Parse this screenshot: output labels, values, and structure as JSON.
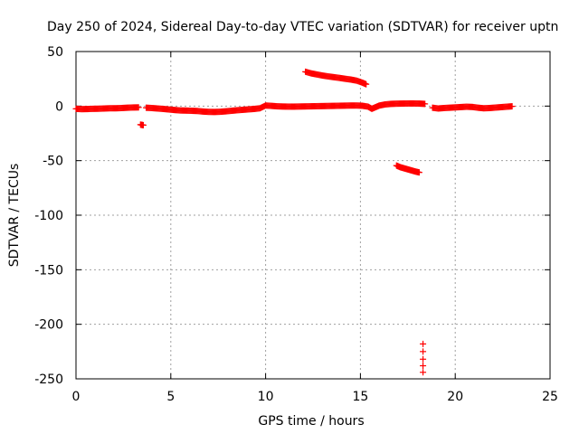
{
  "chart_data": {
    "type": "scatter",
    "title": "Day 250 of 2024, Sidereal Day-to-day VTEC variation (SDTVAR) for receiver uptn",
    "xlabel": "GPS time / hours",
    "ylabel": "SDTVAR / TECUs",
    "xlim": [
      0,
      25
    ],
    "ylim": [
      -250,
      50
    ],
    "x_ticks": [
      "0",
      "5",
      "10",
      "15",
      "20",
      "25"
    ],
    "y_ticks": [
      "50",
      "0",
      "-50",
      "-100",
      "-150",
      "-200",
      "-250"
    ],
    "x_tick_values": [
      0,
      5,
      10,
      15,
      20,
      25
    ],
    "y_tick_values": [
      50,
      0,
      -50,
      -100,
      -150,
      -200,
      -250
    ],
    "grid": true,
    "marker": "plus",
    "color": "#ff0000",
    "series": [
      {
        "values": [
          [
            0.0,
            -2.5
          ],
          [
            0.3,
            -2.8
          ],
          [
            0.6,
            -2.7
          ],
          [
            0.9,
            -2.5
          ],
          [
            1.2,
            -2.4
          ],
          [
            1.5,
            -2.2
          ],
          [
            1.8,
            -2.0
          ],
          [
            2.1,
            -2.0
          ],
          [
            2.4,
            -1.8
          ],
          [
            2.7,
            -1.5
          ],
          [
            3.0,
            -1.3
          ],
          [
            3.3,
            -1.2
          ],
          [
            3.4,
            -17.0
          ],
          [
            3.55,
            -17.5
          ],
          [
            3.7,
            -1.5
          ],
          [
            4.0,
            -1.8
          ],
          [
            4.3,
            -2.2
          ],
          [
            4.6,
            -2.6
          ],
          [
            4.9,
            -3.1
          ],
          [
            5.2,
            -3.6
          ],
          [
            5.5,
            -4.0
          ],
          [
            5.8,
            -4.1
          ],
          [
            6.1,
            -4.3
          ],
          [
            6.4,
            -4.5
          ],
          [
            6.7,
            -5.0
          ],
          [
            7.0,
            -5.3
          ],
          [
            7.3,
            -5.4
          ],
          [
            7.6,
            -5.2
          ],
          [
            7.9,
            -4.8
          ],
          [
            8.2,
            -4.3
          ],
          [
            8.5,
            -3.8
          ],
          [
            8.8,
            -3.4
          ],
          [
            9.1,
            -3.0
          ],
          [
            9.4,
            -2.6
          ],
          [
            9.7,
            -2.0
          ],
          [
            10.0,
            0.5
          ],
          [
            10.3,
            0.2
          ],
          [
            10.6,
            -0.2
          ],
          [
            10.9,
            -0.4
          ],
          [
            11.2,
            -0.5
          ],
          [
            11.5,
            -0.5
          ],
          [
            11.8,
            -0.4
          ],
          [
            12.1,
            -0.3
          ],
          [
            12.4,
            -0.2
          ],
          [
            12.7,
            -0.1
          ],
          [
            13.0,
            0.0
          ],
          [
            13.3,
            0.1
          ],
          [
            13.6,
            0.2
          ],
          [
            13.9,
            0.3
          ],
          [
            14.2,
            0.4
          ],
          [
            14.5,
            0.5
          ],
          [
            14.8,
            0.5
          ],
          [
            15.1,
            0.3
          ],
          [
            15.4,
            -0.5
          ],
          [
            15.6,
            -2.5
          ],
          [
            15.8,
            -1.0
          ],
          [
            16.0,
            0.5
          ],
          [
            16.3,
            1.5
          ],
          [
            16.6,
            2.0
          ],
          [
            16.9,
            2.2
          ],
          [
            17.2,
            2.3
          ],
          [
            17.5,
            2.4
          ],
          [
            17.8,
            2.4
          ],
          [
            18.1,
            2.3
          ],
          [
            18.4,
            2.0
          ],
          [
            12.1,
            31.5
          ],
          [
            12.4,
            30.0
          ],
          [
            12.7,
            29.0
          ],
          [
            13.0,
            28.0
          ],
          [
            13.3,
            27.2
          ],
          [
            13.6,
            26.5
          ],
          [
            13.9,
            25.8
          ],
          [
            14.2,
            25.0
          ],
          [
            14.5,
            24.3
          ],
          [
            14.8,
            23.3
          ],
          [
            15.1,
            21.5
          ],
          [
            15.3,
            20.0
          ],
          [
            16.9,
            -54.5
          ],
          [
            17.1,
            -56.0
          ],
          [
            17.3,
            -57.0
          ],
          [
            17.5,
            -58.0
          ],
          [
            17.7,
            -59.0
          ],
          [
            17.9,
            -60.0
          ],
          [
            18.1,
            -60.8
          ],
          [
            18.3,
            -218.0
          ],
          [
            18.3,
            -225.0
          ],
          [
            18.3,
            -232.0
          ],
          [
            18.3,
            -238.0
          ],
          [
            18.3,
            -244.0
          ],
          [
            18.8,
            -1.5
          ],
          [
            19.1,
            -2.2
          ],
          [
            19.4,
            -1.8
          ],
          [
            19.7,
            -1.5
          ],
          [
            20.0,
            -1.2
          ],
          [
            20.3,
            -0.9
          ],
          [
            20.6,
            -0.6
          ],
          [
            20.9,
            -0.8
          ],
          [
            21.2,
            -1.5
          ],
          [
            21.5,
            -2.0
          ],
          [
            21.8,
            -1.8
          ],
          [
            22.1,
            -1.4
          ],
          [
            22.4,
            -1.0
          ],
          [
            22.7,
            -0.6
          ],
          [
            23.0,
            -0.2
          ]
        ]
      }
    ]
  }
}
